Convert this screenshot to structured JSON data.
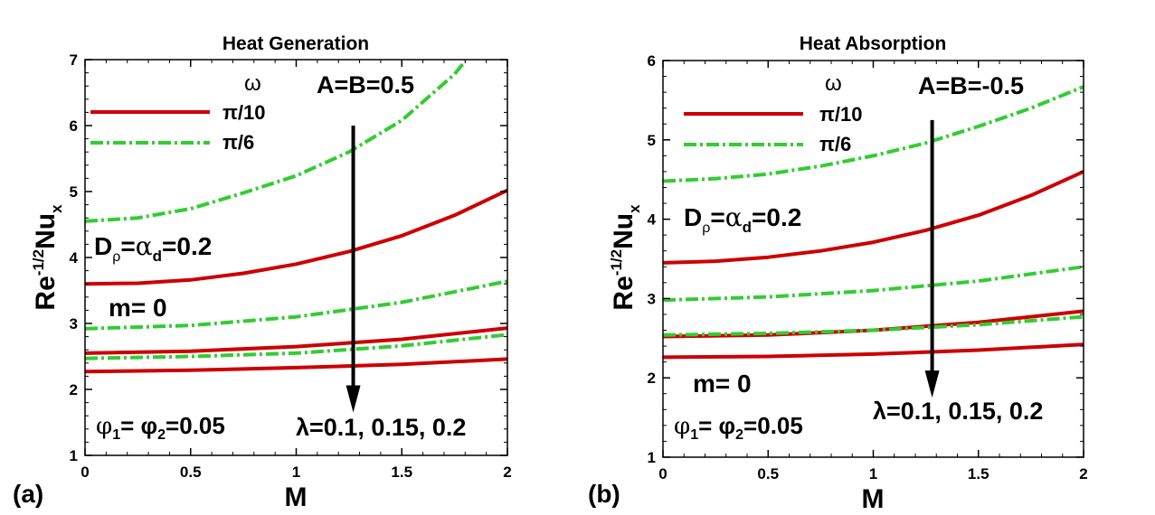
{
  "colors": {
    "red": "#cc0000",
    "green": "#33cc33",
    "axis": "#000000",
    "background": "#ffffff"
  },
  "chart_data": [
    {
      "type": "line",
      "panel_label": "(a)",
      "title": "Heat Generation",
      "xlabel": "M",
      "ylabel": {
        "base": "Re",
        "sup": "-1/2",
        "main": "Nu",
        "sub": "x"
      },
      "xlim": [
        0,
        2
      ],
      "ylim": [
        1,
        7
      ],
      "xticks": [
        0,
        0.5,
        1,
        1.5,
        2
      ],
      "xtick_labels": [
        "0",
        "0.5",
        "1",
        "1.5",
        "2"
      ],
      "yticks": [
        1,
        2,
        3,
        4,
        5,
        6,
        7
      ],
      "ytick_labels": [
        "1",
        "2",
        "3",
        "4",
        "5",
        "6",
        "7"
      ],
      "legend": {
        "title": "ω",
        "entries": [
          {
            "label": "π/10",
            "style": "solid",
            "color": "#cc0000"
          },
          {
            "label": "π/6",
            "style": "dashdot",
            "color": "#33cc33"
          }
        ]
      },
      "series": [
        {
          "name": "π/10, λ=0.1",
          "style": "solid",
          "x": [
            0,
            0.25,
            0.5,
            0.75,
            1,
            1.25,
            1.5,
            1.75,
            2
          ],
          "y": [
            3.6,
            3.61,
            3.66,
            3.76,
            3.9,
            4.09,
            4.33,
            4.64,
            5.02
          ]
        },
        {
          "name": "π/10, λ=0.15",
          "style": "solid",
          "x": [
            0,
            0.5,
            1,
            1.5,
            2
          ],
          "y": [
            2.55,
            2.58,
            2.65,
            2.76,
            2.93
          ]
        },
        {
          "name": "π/10, λ=0.2",
          "style": "solid",
          "x": [
            0,
            0.5,
            1,
            1.5,
            2
          ],
          "y": [
            2.27,
            2.29,
            2.33,
            2.38,
            2.46
          ]
        },
        {
          "name": "π/6, λ=0.1",
          "style": "dashdot",
          "x": [
            0,
            0.25,
            0.5,
            0.75,
            1,
            1.25,
            1.5,
            1.75,
            1.8
          ],
          "y": [
            4.55,
            4.6,
            4.74,
            4.98,
            5.24,
            5.6,
            6.08,
            6.78,
            6.98
          ]
        },
        {
          "name": "π/6, λ=0.15",
          "style": "dashdot",
          "x": [
            0,
            0.5,
            1,
            1.5,
            2
          ],
          "y": [
            2.92,
            2.97,
            3.1,
            3.32,
            3.64
          ]
        },
        {
          "name": "π/6, λ=0.2",
          "style": "dashdot",
          "x": [
            0,
            0.5,
            1,
            1.5,
            2
          ],
          "y": [
            2.47,
            2.5,
            2.55,
            2.66,
            2.83
          ]
        }
      ],
      "annotations": {
        "ab": "A=B=0.5",
        "d_main": "D",
        "d_sub": "ρ",
        "d_mid": "=",
        "d_alpha": "α",
        "d_sub2": "d",
        "d_val": "=0.2",
        "m": "m= 0",
        "phi_a": "φ",
        "phi_sub1": "1",
        "phi_mid": "= φ",
        "phi_sub2": "2",
        "phi_val": "=0.05",
        "lambda": "λ=0.1, 0.15, 0.2"
      },
      "arrow": {
        "x": 1.27,
        "y_from": 6.0,
        "y_to": 1.65
      }
    },
    {
      "type": "line",
      "panel_label": "(b)",
      "title": "Heat Absorption",
      "xlabel": "M",
      "ylabel": {
        "base": "Re",
        "sup": "-1/2",
        "main": "Nu",
        "sub": "x"
      },
      "xlim": [
        0,
        2
      ],
      "ylim": [
        1,
        6
      ],
      "xticks": [
        0,
        0.5,
        1,
        1.5,
        2
      ],
      "xtick_labels": [
        "0",
        "0.5",
        "1",
        "1.5",
        "2"
      ],
      "yticks": [
        1,
        2,
        3,
        4,
        5,
        6
      ],
      "ytick_labels": [
        "1",
        "2",
        "3",
        "4",
        "5",
        "6"
      ],
      "legend": {
        "title": "ω",
        "entries": [
          {
            "label": "π/10",
            "style": "solid",
            "color": "#cc0000"
          },
          {
            "label": "π/6",
            "style": "dashdot",
            "color": "#33cc33"
          }
        ]
      },
      "series": [
        {
          "name": "π/10, λ=0.1",
          "style": "solid",
          "x": [
            0,
            0.25,
            0.5,
            0.75,
            1,
            1.25,
            1.5,
            1.75,
            2
          ],
          "y": [
            3.45,
            3.47,
            3.52,
            3.6,
            3.71,
            3.86,
            4.05,
            4.3,
            4.6
          ]
        },
        {
          "name": "π/10, λ=0.15",
          "style": "solid",
          "x": [
            0,
            0.5,
            1,
            1.5,
            2
          ],
          "y": [
            2.52,
            2.54,
            2.6,
            2.7,
            2.84
          ]
        },
        {
          "name": "π/10, λ=0.2",
          "style": "solid",
          "x": [
            0,
            0.5,
            1,
            1.5,
            2
          ],
          "y": [
            2.26,
            2.27,
            2.3,
            2.35,
            2.42
          ]
        },
        {
          "name": "π/6, λ=0.1",
          "style": "dashdot",
          "x": [
            0,
            0.25,
            0.5,
            0.75,
            1,
            1.25,
            1.5,
            1.75,
            2
          ],
          "y": [
            4.48,
            4.51,
            4.57,
            4.67,
            4.8,
            4.96,
            5.17,
            5.4,
            5.67
          ]
        },
        {
          "name": "π/6, λ=0.15",
          "style": "dashdot",
          "x": [
            0,
            0.5,
            1,
            1.5,
            2
          ],
          "y": [
            2.98,
            3.02,
            3.1,
            3.22,
            3.4
          ]
        },
        {
          "name": "π/6, λ=0.2",
          "style": "dashdot",
          "x": [
            0,
            0.5,
            1,
            1.5,
            2
          ],
          "y": [
            2.54,
            2.56,
            2.6,
            2.67,
            2.77
          ]
        }
      ],
      "annotations": {
        "ab": "A=B=-0.5",
        "d_main": "D",
        "d_sub": "ρ",
        "d_mid": "=",
        "d_alpha": "α",
        "d_sub2": "d",
        "d_val": "=0.2",
        "m": "m= 0",
        "phi_a": "φ",
        "phi_sub1": "1",
        "phi_mid": "= φ",
        "phi_sub2": "2",
        "phi_val": "=0.05",
        "lambda": "λ=0.1, 0.15, 0.2"
      },
      "arrow": {
        "x": 1.28,
        "y_from": 5.25,
        "y_to": 1.75
      }
    }
  ]
}
